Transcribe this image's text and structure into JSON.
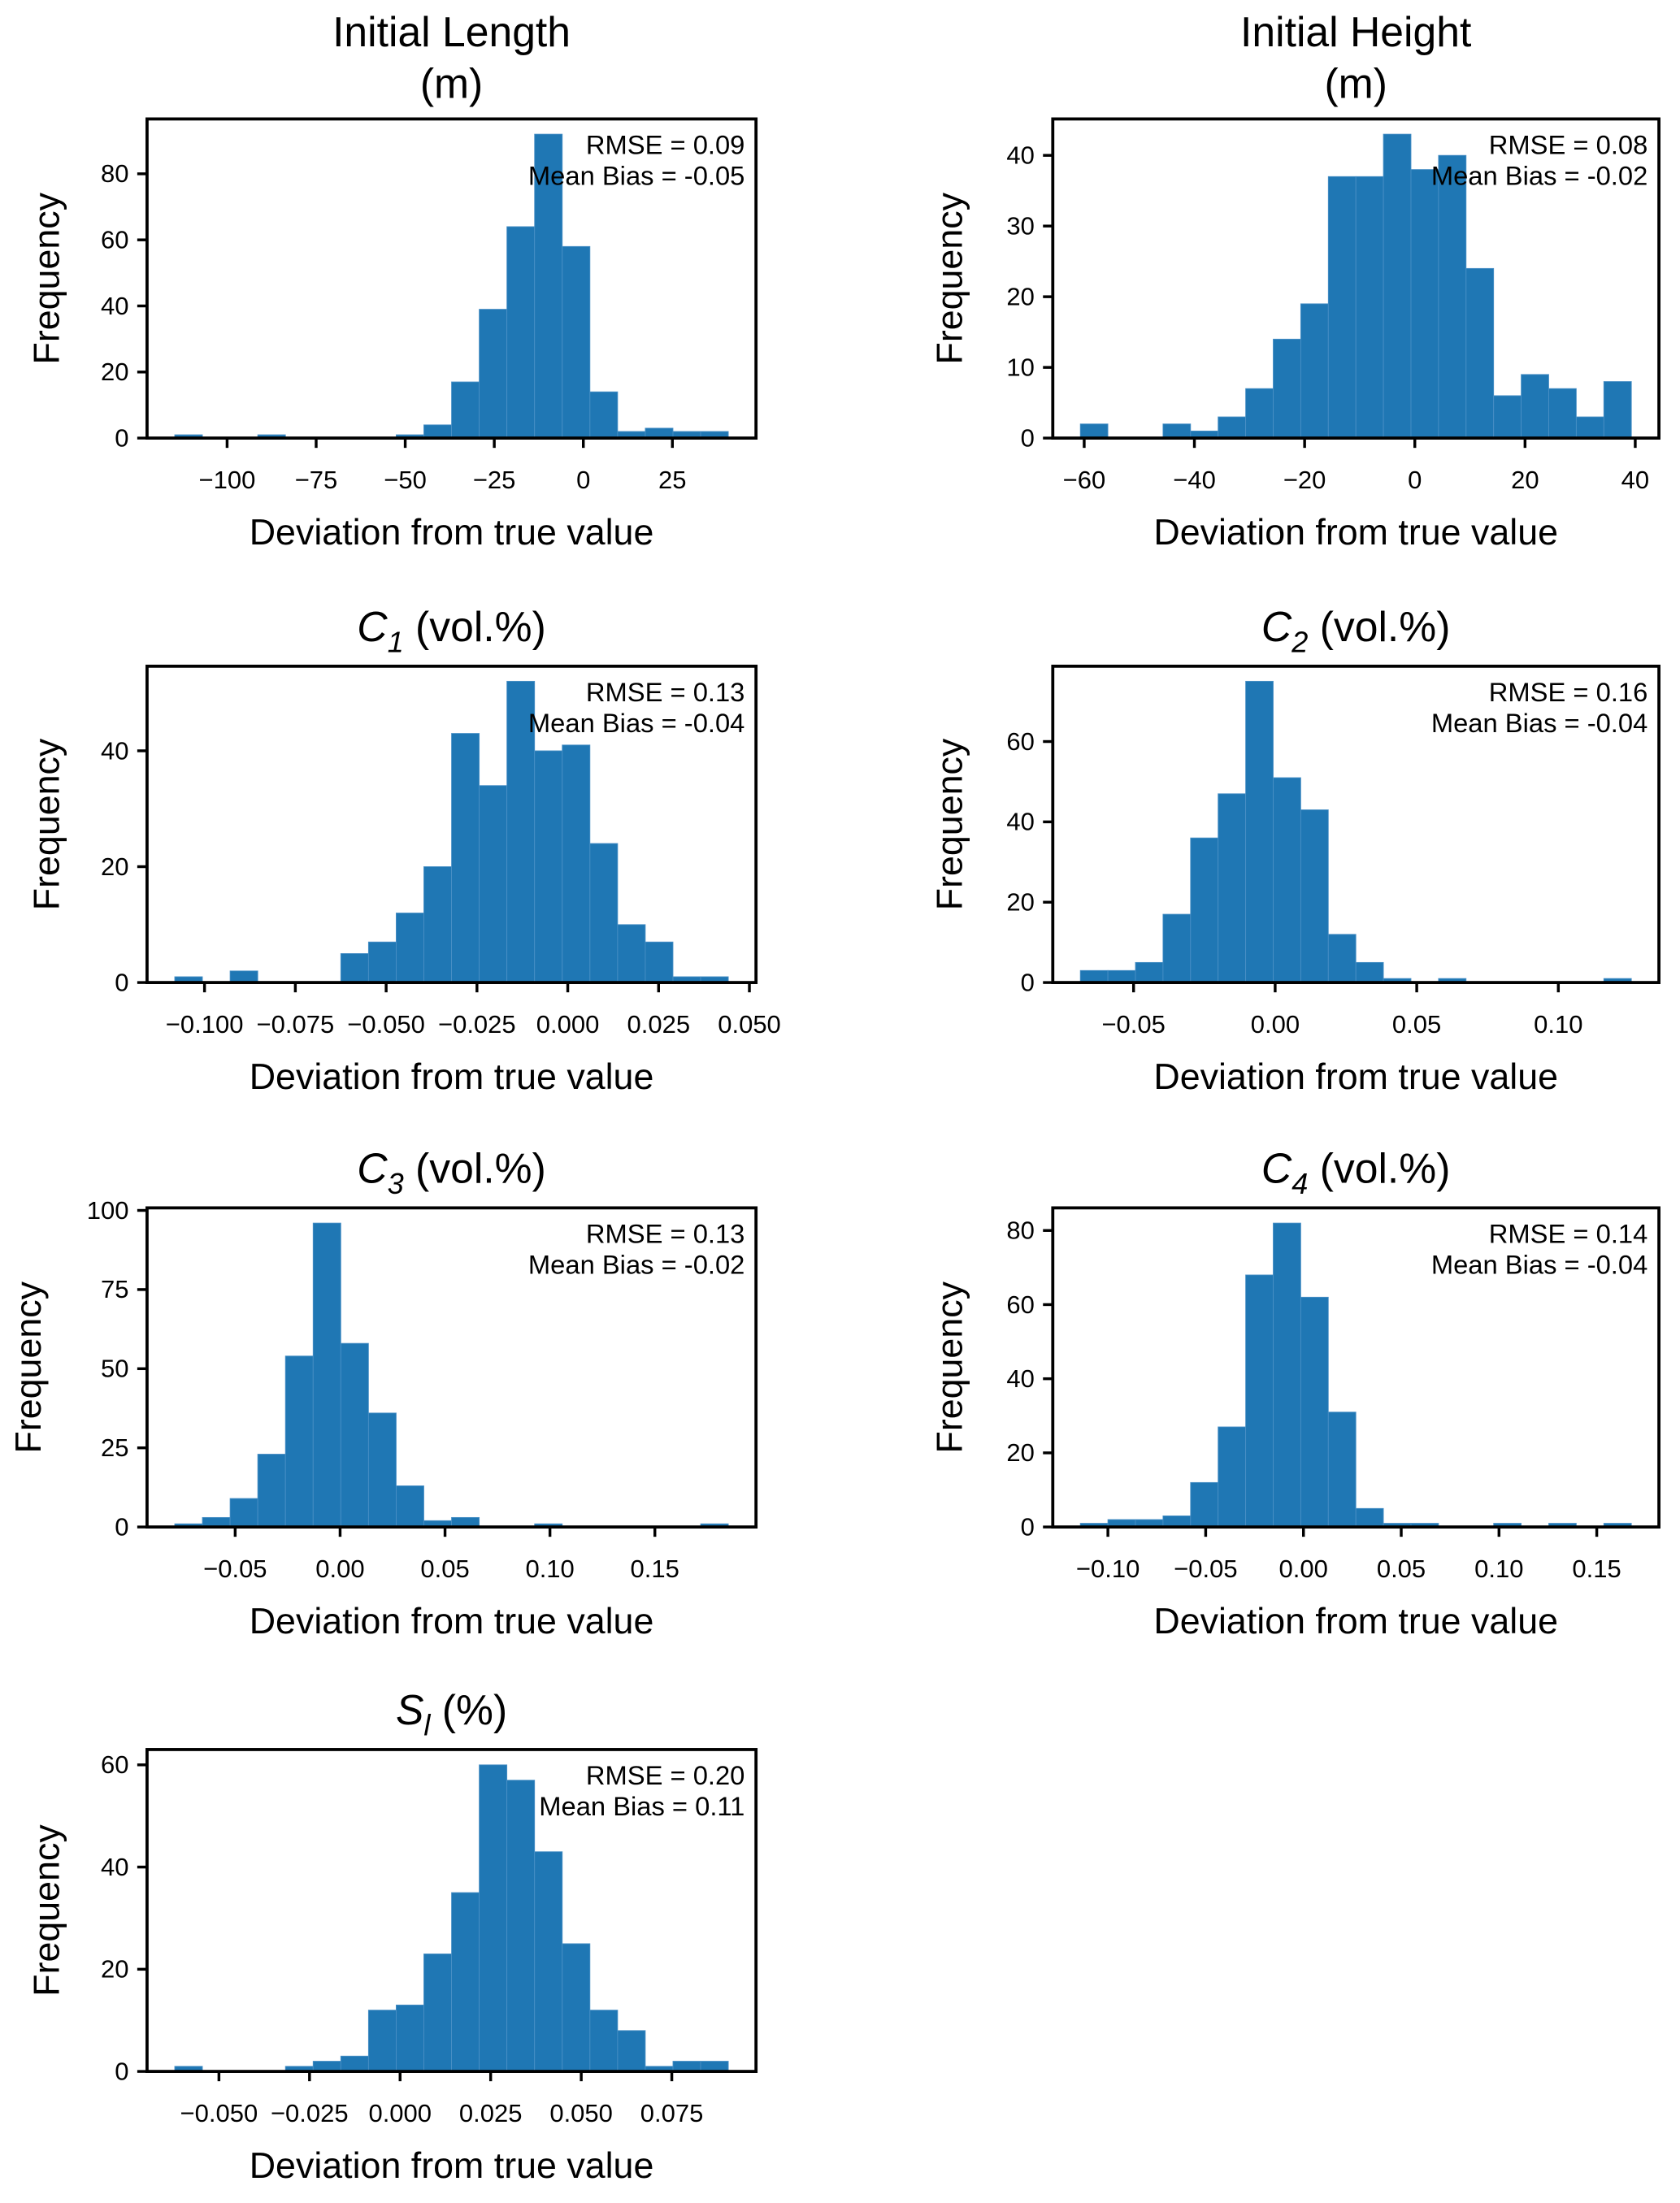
{
  "chart_data": [
    {
      "type": "histogram",
      "title": [
        "Initial Length",
        "(m)"
      ],
      "xlabel": "Deviation from true value",
      "ylabel": "Frequency",
      "bin_range": [
        -114.7,
        40.7
      ],
      "counts": [
        1,
        0,
        0,
        1,
        0,
        0,
        0,
        0,
        1,
        4,
        17,
        39,
        64,
        92,
        58,
        14,
        2,
        3,
        2,
        2
      ],
      "xticks": [
        -100,
        -75,
        -50,
        -25,
        0,
        25
      ],
      "xtick_labels": [
        "−100",
        "−75",
        "−50",
        "−25",
        "0",
        "25"
      ],
      "yticks": [
        0,
        20,
        40,
        60,
        80
      ],
      "yticks_labels": [
        "0",
        "20",
        "40",
        "60",
        "80"
      ],
      "annotations": [
        "RMSE = 0.09",
        "Mean Bias = -0.05"
      ]
    },
    {
      "type": "histogram",
      "title": [
        "Initial Height",
        "(m)"
      ],
      "xlabel": "Deviation from true value",
      "ylabel": "Frequency",
      "bin_range": [
        -60.7,
        39.3
      ],
      "counts": [
        2,
        0,
        0,
        2,
        1,
        3,
        7,
        14,
        19,
        37,
        37,
        43,
        38,
        40,
        24,
        6,
        9,
        7,
        3,
        8
      ],
      "xticks": [
        -60,
        -40,
        -20,
        0,
        20,
        40
      ],
      "xtick_labels": [
        "−60",
        "−40",
        "−20",
        "0",
        "20",
        "40"
      ],
      "yticks": [
        0,
        10,
        20,
        30,
        40
      ],
      "yticks_labels": [
        "0",
        "10",
        "20",
        "30",
        "40"
      ],
      "annotations": [
        "RMSE = 0.08",
        "Mean Bias = -0.02"
      ]
    },
    {
      "type": "histogram",
      "title_math": {
        "symbol": "C",
        "sub": "1",
        "rest": " (vol.%)"
      },
      "xlabel": "Deviation from true value",
      "ylabel": "Frequency",
      "bin_range": [
        -0.1082,
        0.0442
      ],
      "counts": [
        1,
        0,
        2,
        0,
        0,
        0,
        5,
        7,
        12,
        20,
        43,
        34,
        52,
        40,
        41,
        24,
        10,
        7,
        1,
        1
      ],
      "xticks": [
        -0.1,
        -0.075,
        -0.05,
        -0.025,
        0,
        0.025,
        0.05
      ],
      "xtick_labels": [
        "−0.100",
        "−0.075",
        "−0.050",
        "−0.025",
        "0.000",
        "0.025",
        "0.050"
      ],
      "yticks": [
        0,
        20,
        40
      ],
      "yticks_labels": [
        "0",
        "20",
        "40"
      ],
      "annotations": [
        "RMSE = 0.13",
        "Mean Bias = -0.04"
      ]
    },
    {
      "type": "histogram",
      "title_math": {
        "symbol": "C",
        "sub": "2",
        "rest": " (vol.%)"
      },
      "xlabel": "Deviation from true value",
      "ylabel": "Frequency",
      "bin_range": [
        -0.0688,
        0.1258
      ],
      "counts": [
        3,
        3,
        5,
        17,
        36,
        47,
        75,
        51,
        43,
        12,
        5,
        1,
        0,
        1,
        0,
        0,
        0,
        0,
        0,
        1
      ],
      "xticks": [
        -0.05,
        0,
        0.05,
        0.1
      ],
      "xtick_labels": [
        "−0.05",
        "0.00",
        "0.05",
        "0.10"
      ],
      "yticks": [
        0,
        20,
        40,
        60
      ],
      "yticks_labels": [
        "0",
        "20",
        "40",
        "60"
      ],
      "annotations": [
        "RMSE = 0.16",
        "Mean Bias = -0.04"
      ]
    },
    {
      "type": "histogram",
      "title_math": {
        "symbol": "C",
        "sub": "3",
        "rest": " (vol.%)"
      },
      "xlabel": "Deviation from true value",
      "ylabel": "Frequency",
      "bin_range": [
        -0.0788,
        0.185
      ],
      "counts": [
        1,
        3,
        9,
        23,
        54,
        96,
        58,
        36,
        13,
        2,
        3,
        0,
        0,
        1,
        0,
        0,
        0,
        0,
        0,
        1
      ],
      "xticks": [
        -0.05,
        0,
        0.05,
        0.1,
        0.15
      ],
      "xtick_labels": [
        "−0.05",
        "0.00",
        "0.05",
        "0.10",
        "0.15"
      ],
      "yticks": [
        0,
        25,
        50,
        75,
        100
      ],
      "yticks_labels": [
        "0",
        "25",
        "50",
        "75",
        "100"
      ],
      "annotations": [
        "RMSE = 0.13",
        "Mean Bias = -0.02"
      ]
    },
    {
      "type": "histogram",
      "title_math": {
        "symbol": "C",
        "sub": "4",
        "rest": " (vol.%)"
      },
      "xlabel": "Deviation from true value",
      "ylabel": "Frequency",
      "bin_range": [
        -0.1141,
        0.1677
      ],
      "counts": [
        1,
        2,
        2,
        3,
        12,
        27,
        68,
        82,
        62,
        31,
        5,
        1,
        1,
        0,
        0,
        1,
        0,
        1,
        0,
        1
      ],
      "xticks": [
        -0.1,
        -0.05,
        0,
        0.05,
        0.1,
        0.15
      ],
      "xtick_labels": [
        "−0.10",
        "−0.05",
        "0.00",
        "0.05",
        "0.10",
        "0.15"
      ],
      "yticks": [
        0,
        20,
        40,
        60,
        80
      ],
      "yticks_labels": [
        "0",
        "20",
        "40",
        "60",
        "80"
      ],
      "annotations": [
        "RMSE = 0.14",
        "Mean Bias = -0.04"
      ]
    },
    {
      "type": "histogram",
      "title_math": {
        "symbol": "S",
        "sub": "l",
        "rest": " (%)"
      },
      "xlabel": "Deviation from true value",
      "ylabel": "Frequency",
      "bin_range": [
        -0.0622,
        0.0906
      ],
      "counts": [
        1,
        0,
        0,
        0,
        1,
        2,
        3,
        12,
        13,
        23,
        35,
        60,
        57,
        43,
        25,
        12,
        8,
        1,
        2,
        2
      ],
      "xticks": [
        -0.05,
        -0.025,
        0,
        0.025,
        0.05,
        0.075
      ],
      "xtick_labels": [
        "−0.050",
        "−0.025",
        "0.000",
        "0.025",
        "0.050",
        "0.075"
      ],
      "yticks": [
        0,
        20,
        40,
        60
      ],
      "yticks_labels": [
        "0",
        "20",
        "40",
        "60"
      ],
      "annotations": [
        "RMSE = 0.20",
        "Mean Bias = 0.11"
      ]
    }
  ],
  "colors": {
    "bars": "#1f77b4",
    "bar_edge": "#4a90c6",
    "axes": "#000000"
  }
}
